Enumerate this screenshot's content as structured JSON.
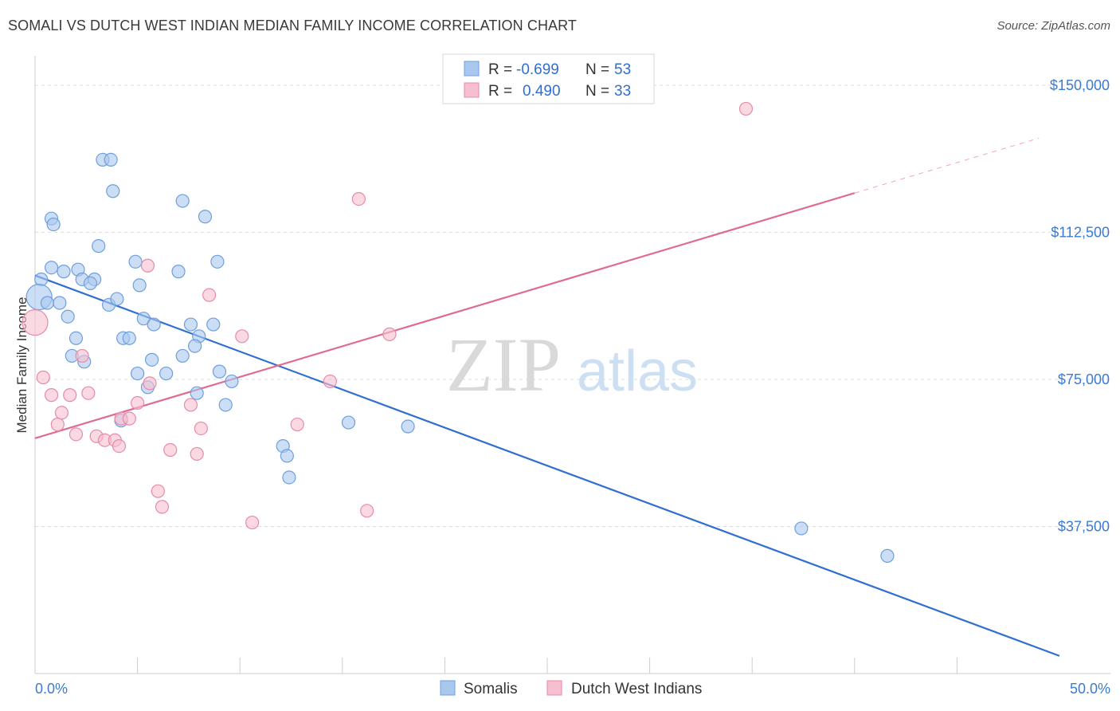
{
  "header": {
    "title": "SOMALI VS DUTCH WEST INDIAN MEDIAN FAMILY INCOME CORRELATION CHART",
    "source": "Source: ZipAtlas.com"
  },
  "watermark": {
    "zip": "ZIP",
    "atlas": "atlas"
  },
  "legend": {
    "r_label": "R =",
    "n_label": "N =",
    "somali": {
      "r": "-0.699",
      "n": "53"
    },
    "dutch": {
      "r": "0.490",
      "n": "33"
    }
  },
  "colors": {
    "somali_fill": "#a9c8ef",
    "somali_stroke": "#6e9fdc",
    "somali_line": "#2f6fd0",
    "dutch_fill": "#f6bfd0",
    "dutch_stroke": "#e88aa8",
    "dutch_line": "#e06b92",
    "grid": "#dddddd",
    "tick_text": "#3c7bd0"
  },
  "chart_data": {
    "type": "scatter",
    "title": "SOMALI VS DUTCH WEST INDIAN MEDIAN FAMILY INCOME CORRELATION CHART",
    "xlabel": "",
    "ylabel": "Median Family Income",
    "xlim": [
      0,
      50
    ],
    "ylim": [
      0,
      157500
    ],
    "x_tick_labels": [
      {
        "value": 0,
        "label": "0.0%"
      },
      {
        "value": 50,
        "label": "50.0%"
      }
    ],
    "y_ticks": [
      {
        "value": 37500,
        "label": "$37,500"
      },
      {
        "value": 75000,
        "label": "$75,000"
      },
      {
        "value": 112500,
        "label": "$112,500"
      },
      {
        "value": 150000,
        "label": "$150,000"
      }
    ],
    "series": [
      {
        "name": "Somalis",
        "r": -0.699,
        "n": 53,
        "trend": {
          "x0": 0.0,
          "y0": 101500,
          "x1": 50.0,
          "y1": 4500
        },
        "points": [
          [
            3.3,
            131000
          ],
          [
            3.7,
            131000
          ],
          [
            3.8,
            123000
          ],
          [
            7.2,
            120500
          ],
          [
            8.3,
            116500
          ],
          [
            0.8,
            116000
          ],
          [
            0.9,
            114500
          ],
          [
            3.1,
            109000
          ],
          [
            4.9,
            105000
          ],
          [
            8.9,
            105000
          ],
          [
            0.8,
            103500
          ],
          [
            1.4,
            102500
          ],
          [
            2.1,
            103000
          ],
          [
            7.0,
            102500
          ],
          [
            0.3,
            100500
          ],
          [
            2.3,
            100500
          ],
          [
            2.9,
            100500
          ],
          [
            2.7,
            99500
          ],
          [
            5.1,
            99000
          ],
          [
            0.2,
            96000
          ],
          [
            0.6,
            94500
          ],
          [
            1.2,
            94500
          ],
          [
            3.6,
            94000
          ],
          [
            4.0,
            95500
          ],
          [
            1.6,
            91000
          ],
          [
            5.3,
            90500
          ],
          [
            5.8,
            89000
          ],
          [
            7.6,
            89000
          ],
          [
            8.7,
            89000
          ],
          [
            2.0,
            85500
          ],
          [
            4.3,
            85500
          ],
          [
            4.6,
            85500
          ],
          [
            8.0,
            86000
          ],
          [
            7.8,
            83500
          ],
          [
            1.8,
            81000
          ],
          [
            7.2,
            81000
          ],
          [
            2.4,
            79500
          ],
          [
            5.7,
            80000
          ],
          [
            5.0,
            76500
          ],
          [
            6.4,
            76500
          ],
          [
            9.0,
            77000
          ],
          [
            5.5,
            73000
          ],
          [
            7.9,
            71500
          ],
          [
            9.6,
            74500
          ],
          [
            9.3,
            68500
          ],
          [
            4.2,
            64500
          ],
          [
            15.3,
            64000
          ],
          [
            18.2,
            63000
          ],
          [
            12.1,
            58000
          ],
          [
            12.3,
            55500
          ],
          [
            12.4,
            50000
          ],
          [
            37.4,
            37000
          ],
          [
            41.6,
            30000
          ]
        ]
      },
      {
        "name": "Dutch West Indians",
        "r": 0.49,
        "n": 33,
        "trend": {
          "x0": 0.0,
          "y0": 60000,
          "x1": 40.0,
          "y1": 122500,
          "dash_to_x": 49.0,
          "dash_to_y": 136500
        },
        "points": [
          [
            34.7,
            144000
          ],
          [
            15.8,
            121000
          ],
          [
            5.5,
            104000
          ],
          [
            8.5,
            96500
          ],
          [
            0.0,
            89500
          ],
          [
            17.3,
            86500
          ],
          [
            10.1,
            86000
          ],
          [
            2.3,
            81000
          ],
          [
            0.4,
            75500
          ],
          [
            14.4,
            74500
          ],
          [
            5.6,
            74000
          ],
          [
            0.8,
            71000
          ],
          [
            1.7,
            71000
          ],
          [
            2.6,
            71500
          ],
          [
            5.0,
            69000
          ],
          [
            7.6,
            68500
          ],
          [
            1.3,
            66500
          ],
          [
            4.2,
            65000
          ],
          [
            4.6,
            65000
          ],
          [
            1.1,
            63500
          ],
          [
            12.8,
            63500
          ],
          [
            8.1,
            62500
          ],
          [
            2.0,
            61000
          ],
          [
            3.0,
            60500
          ],
          [
            3.4,
            59500
          ],
          [
            3.9,
            59500
          ],
          [
            4.1,
            58000
          ],
          [
            6.6,
            57000
          ],
          [
            7.9,
            56000
          ],
          [
            6.0,
            46500
          ],
          [
            6.2,
            42500
          ],
          [
            16.2,
            41500
          ],
          [
            10.6,
            38500
          ]
        ]
      }
    ]
  }
}
